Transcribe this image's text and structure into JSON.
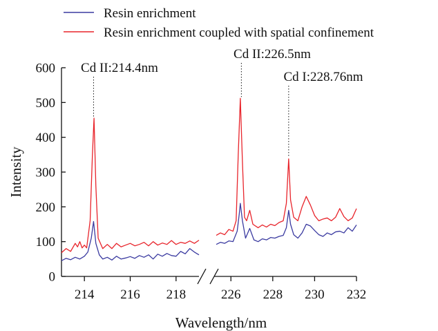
{
  "chart_data": {
    "type": "line",
    "xlabel": "Wavelength/nm",
    "ylabel": "Intensity",
    "ylim": [
      0,
      600
    ],
    "yticks": [
      0,
      100,
      200,
      300,
      400,
      500,
      600
    ],
    "x_segments": [
      {
        "xlim": [
          213,
          219
        ],
        "ticks": [
          214,
          216,
          218
        ]
      },
      {
        "xlim": [
          225.2,
          232
        ],
        "ticks": [
          226,
          228,
          230,
          232
        ]
      }
    ],
    "axis_break": "between 219 and 225.2",
    "legend_position": "top-left",
    "grid": false,
    "series": [
      {
        "name": "Resin enrichment",
        "color": "#3a3aa0",
        "segments": [
          [
            [
              213.0,
              45
            ],
            [
              213.2,
              52
            ],
            [
              213.4,
              48
            ],
            [
              213.6,
              55
            ],
            [
              213.8,
              50
            ],
            [
              214.0,
              58
            ],
            [
              214.15,
              70
            ],
            [
              214.3,
              110
            ],
            [
              214.4,
              158
            ],
            [
              214.5,
              95
            ],
            [
              214.65,
              62
            ],
            [
              214.8,
              50
            ],
            [
              215.0,
              55
            ],
            [
              215.2,
              47
            ],
            [
              215.4,
              58
            ],
            [
              215.6,
              50
            ],
            [
              215.8,
              53
            ],
            [
              216.0,
              57
            ],
            [
              216.2,
              52
            ],
            [
              216.4,
              60
            ],
            [
              216.6,
              55
            ],
            [
              216.8,
              62
            ],
            [
              217.0,
              50
            ],
            [
              217.2,
              64
            ],
            [
              217.4,
              58
            ],
            [
              217.6,
              66
            ],
            [
              217.8,
              60
            ],
            [
              218.0,
              58
            ],
            [
              218.2,
              72
            ],
            [
              218.4,
              65
            ],
            [
              218.6,
              80
            ],
            [
              218.8,
              70
            ],
            [
              219.0,
              62
            ]
          ],
          [
            [
              225.3,
              92
            ],
            [
              225.5,
              98
            ],
            [
              225.7,
              95
            ],
            [
              225.9,
              102
            ],
            [
              226.1,
              100
            ],
            [
              226.3,
              130
            ],
            [
              226.4,
              180
            ],
            [
              226.45,
              210
            ],
            [
              226.55,
              160
            ],
            [
              226.7,
              110
            ],
            [
              226.9,
              138
            ],
            [
              227.1,
              105
            ],
            [
              227.3,
              100
            ],
            [
              227.5,
              108
            ],
            [
              227.7,
              105
            ],
            [
              227.9,
              112
            ],
            [
              228.1,
              110
            ],
            [
              228.3,
              115
            ],
            [
              228.5,
              118
            ],
            [
              228.65,
              140
            ],
            [
              228.76,
              190
            ],
            [
              228.85,
              150
            ],
            [
              229.0,
              120
            ],
            [
              229.2,
              110
            ],
            [
              229.4,
              125
            ],
            [
              229.6,
              150
            ],
            [
              229.8,
              145
            ],
            [
              230.0,
              132
            ],
            [
              230.2,
              120
            ],
            [
              230.4,
              115
            ],
            [
              230.6,
              125
            ],
            [
              230.8,
              120
            ],
            [
              231.0,
              128
            ],
            [
              231.2,
              130
            ],
            [
              231.4,
              125
            ],
            [
              231.6,
              140
            ],
            [
              231.8,
              130
            ],
            [
              232.0,
              148
            ]
          ]
        ]
      },
      {
        "name": "Resin enrichment coupled with spatial confinement",
        "color": "#e8232a",
        "segments": [
          [
            [
              213.0,
              68
            ],
            [
              213.2,
              80
            ],
            [
              213.4,
              72
            ],
            [
              213.6,
              95
            ],
            [
              213.7,
              85
            ],
            [
              213.8,
              100
            ],
            [
              213.9,
              82
            ],
            [
              214.0,
              90
            ],
            [
              214.1,
              82
            ],
            [
              214.25,
              160
            ],
            [
              214.35,
              350
            ],
            [
              214.42,
              455
            ],
            [
              214.5,
              260
            ],
            [
              214.6,
              110
            ],
            [
              214.8,
              80
            ],
            [
              215.0,
              92
            ],
            [
              215.2,
              80
            ],
            [
              215.4,
              95
            ],
            [
              215.6,
              85
            ],
            [
              215.8,
              90
            ],
            [
              216.0,
              95
            ],
            [
              216.2,
              88
            ],
            [
              216.4,
              92
            ],
            [
              216.6,
              98
            ],
            [
              216.8,
              88
            ],
            [
              217.0,
              100
            ],
            [
              217.2,
              90
            ],
            [
              217.4,
              96
            ],
            [
              217.6,
              92
            ],
            [
              217.8,
              103
            ],
            [
              218.0,
              92
            ],
            [
              218.2,
              98
            ],
            [
              218.4,
              95
            ],
            [
              218.6,
              102
            ],
            [
              218.8,
              95
            ],
            [
              219.0,
              104
            ]
          ],
          [
            [
              225.3,
              118
            ],
            [
              225.5,
              125
            ],
            [
              225.7,
              120
            ],
            [
              225.9,
              135
            ],
            [
              226.1,
              130
            ],
            [
              226.25,
              160
            ],
            [
              226.35,
              350
            ],
            [
              226.45,
              512
            ],
            [
              226.55,
              330
            ],
            [
              226.65,
              170
            ],
            [
              226.75,
              160
            ],
            [
              226.9,
              190
            ],
            [
              227.05,
              150
            ],
            [
              227.3,
              140
            ],
            [
              227.5,
              148
            ],
            [
              227.7,
              142
            ],
            [
              227.9,
              150
            ],
            [
              228.1,
              146
            ],
            [
              228.3,
              155
            ],
            [
              228.5,
              160
            ],
            [
              228.65,
              210
            ],
            [
              228.76,
              338
            ],
            [
              228.85,
              220
            ],
            [
              229.0,
              170
            ],
            [
              229.2,
              160
            ],
            [
              229.4,
              200
            ],
            [
              229.6,
              230
            ],
            [
              229.8,
              205
            ],
            [
              230.0,
              175
            ],
            [
              230.2,
              160
            ],
            [
              230.4,
              165
            ],
            [
              230.6,
              168
            ],
            [
              230.8,
              160
            ],
            [
              231.0,
              170
            ],
            [
              231.2,
              195
            ],
            [
              231.4,
              172
            ],
            [
              231.6,
              160
            ],
            [
              231.8,
              168
            ],
            [
              232.0,
              195
            ]
          ]
        ]
      }
    ],
    "annotations": [
      {
        "label": "Cd II:214.4nm",
        "x": 214.4,
        "peak": 455
      },
      {
        "label": "Cd II:226.5nm",
        "x": 226.5,
        "peak": 512
      },
      {
        "label": "Cd I:228.76nm",
        "x": 228.76,
        "peak": 338
      }
    ]
  }
}
